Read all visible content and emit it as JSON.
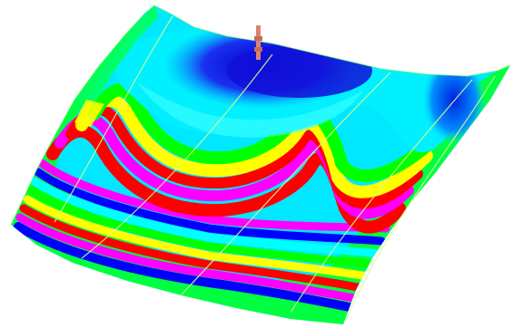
{
  "image": {
    "subject": "fringe-contour-surface",
    "colors": {
      "background": "#ffffff",
      "fringe_palette": [
        "#ff00ff",
        "#ff0000",
        "#ffff00",
        "#00ff00",
        "#00ffff",
        "#0000ff"
      ],
      "top_region": "#00e5ff",
      "peak_blue": "#1010d8",
      "marker": "#d98572",
      "seam_line": "#d8ff8a"
    },
    "icons": {
      "marker": "probe-marker-icon"
    }
  }
}
